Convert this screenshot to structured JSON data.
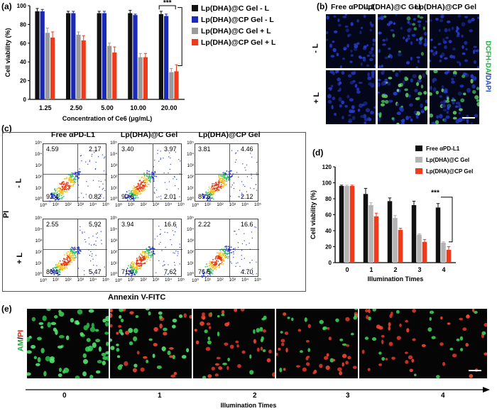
{
  "panels": {
    "a": "(a)",
    "b": "(b)",
    "c": "(c)",
    "d": "(d)",
    "e": "(e)"
  },
  "chart_data": [
    {
      "id": "a",
      "type": "bar",
      "xlabel": "Concentration of Ce6 (μg/mL)",
      "ylabel": "Cell viability (%)",
      "ylim": [
        0,
        100
      ],
      "yticks": [
        "0",
        "20",
        "40",
        "60",
        "80",
        "100"
      ],
      "categories": [
        "1.25",
        "2.50",
        "5.00",
        "10.00",
        "20.00"
      ],
      "series": [
        {
          "name": "Lp(DHA)@C Gel - L",
          "color": "#111111",
          "values": [
            94,
            92,
            92,
            92,
            91
          ],
          "errors": [
            3,
            2,
            2,
            3,
            3
          ]
        },
        {
          "name": "Lp(DHA)@CP Gel - L",
          "color": "#1a29b8",
          "values": [
            94,
            92,
            92,
            90,
            89
          ],
          "errors": [
            2,
            2,
            2,
            1,
            2
          ]
        },
        {
          "name": "Lp(DHA)@C Gel + L",
          "color": "#9a9a9a",
          "values": [
            71,
            69,
            57,
            45,
            29
          ],
          "errors": [
            5,
            3,
            3,
            4,
            4
          ]
        },
        {
          "name": "Lp(DHA)@CP Gel + L",
          "color": "#f03a1c",
          "values": [
            66,
            63,
            50,
            45,
            30
          ],
          "errors": [
            6,
            5,
            6,
            4,
            7
          ]
        }
      ],
      "annotation": "***"
    },
    {
      "id": "d",
      "type": "bar",
      "xlabel": "Illumination Times",
      "ylabel": "Cell viability (%)",
      "ylim": [
        0,
        120
      ],
      "yticks": [
        "0",
        "20",
        "40",
        "60",
        "80",
        "100",
        "120"
      ],
      "categories": [
        "0",
        "1",
        "2",
        "3",
        "4"
      ],
      "series": [
        {
          "name": "Free αPD-L1",
          "color": "#111111",
          "values": [
            96,
            86,
            77,
            72,
            69
          ],
          "errors": [
            1,
            7,
            4,
            5,
            5
          ]
        },
        {
          "name": "Lp(DHA)@C Gel",
          "color": "#b4b4b4",
          "values": [
            96,
            72,
            56,
            35,
            25
          ],
          "errors": [
            1,
            3,
            3,
            1,
            1
          ]
        },
        {
          "name": "Lp(DHA)@CP Gel",
          "color": "#f03a1c",
          "values": [
            96,
            58,
            41,
            26,
            16
          ],
          "errors": [
            1,
            4,
            2,
            3,
            4
          ]
        }
      ],
      "annotation": "***"
    }
  ],
  "panel_b": {
    "columns": [
      "Free αPD-L1",
      "Lp(DHA)@C Gel",
      "Lp(DHA)@CP Gel"
    ],
    "rows": [
      "- L",
      "+ L"
    ],
    "stain_green": "DCFH-DA",
    "stain_sep": "/",
    "stain_blue": "DAPI"
  },
  "panel_c": {
    "columns": [
      "Free αPD-L1",
      "Lp(DHA)@C Gel",
      "Lp(DHA)@CP Gel"
    ],
    "rows": [
      "- L",
      "+ L"
    ],
    "ylabel": "PI",
    "xlabel": "Annexin V-FITC",
    "axis_ticks": [
      "10⁰",
      "10¹",
      "10²",
      "10³",
      "10⁴",
      "10⁵"
    ],
    "axis_ticks_y": [
      "10⁵",
      "10⁴",
      "10³",
      "10²",
      "10¹",
      "10⁰"
    ],
    "plots": [
      [
        [
          "4.59",
          "2.17",
          "92.4",
          "0.82"
        ],
        [
          "3.40",
          "3.97",
          "90.6",
          "2.01"
        ],
        [
          "3.81",
          "4.46",
          "89.6",
          "2.12"
        ]
      ],
      [
        [
          "2.55",
          "5.92",
          "86.1",
          "5.47"
        ],
        [
          "3.94",
          "16.6",
          "71.9",
          "7.62"
        ],
        [
          "2.22",
          "16.6",
          "76.5",
          "4.70"
        ]
      ]
    ]
  },
  "panel_e": {
    "stain_green": "AM",
    "stain_sep": "/",
    "stain_red": "PI",
    "times": [
      "0",
      "1",
      "2",
      "3",
      "4"
    ],
    "xlabel": "Illumination Times"
  }
}
